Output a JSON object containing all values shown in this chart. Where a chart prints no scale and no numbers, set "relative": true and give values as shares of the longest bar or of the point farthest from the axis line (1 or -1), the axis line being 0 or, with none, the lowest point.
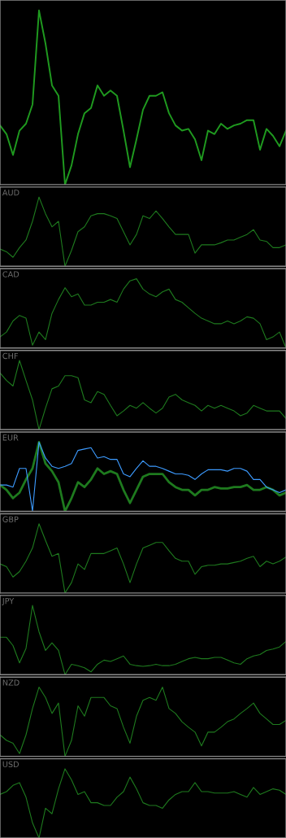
{
  "chart_data": [
    {
      "type": "line",
      "relative": true,
      "grid": false,
      "legend": false,
      "categories": [
        null,
        null,
        null,
        null,
        null,
        null,
        null,
        null,
        null,
        null,
        null,
        null,
        null,
        null,
        null,
        null,
        null,
        null,
        null,
        null,
        null,
        null,
        null,
        null,
        null,
        null,
        null,
        null,
        null,
        null,
        null,
        null,
        null,
        null,
        null,
        null,
        null,
        null,
        null,
        null,
        null,
        null,
        null,
        null,
        null
      ],
      "series": [
        {
          "color": "#1f9a1f",
          "values": [
            0.34,
            0.29,
            0.17,
            0.31,
            0.35,
            0.46,
            1.0,
            0.81,
            0.57,
            0.51,
            0.0,
            0.11,
            0.29,
            0.41,
            0.44,
            0.57,
            0.51,
            0.54,
            0.51,
            0.31,
            0.1,
            0.26,
            0.43,
            0.51,
            0.51,
            0.53,
            0.41,
            0.34,
            0.31,
            0.32,
            0.26,
            0.14,
            0.31,
            0.29,
            0.35,
            0.32,
            0.34,
            0.35,
            0.37,
            0.37,
            0.2,
            0.32,
            0.28,
            0.22,
            0.31
          ]
        }
      ]
    },
    {
      "type": "line",
      "relative": true,
      "grid": false,
      "legend": false,
      "title": "AUD",
      "categories": [
        null,
        null,
        null,
        null,
        null,
        null,
        null,
        null,
        null,
        null,
        null,
        null,
        null,
        null,
        null,
        null,
        null,
        null,
        null,
        null,
        null,
        null,
        null,
        null,
        null,
        null,
        null,
        null,
        null,
        null,
        null,
        null,
        null,
        null,
        null,
        null,
        null,
        null,
        null,
        null,
        null,
        null,
        null,
        null,
        null
      ],
      "series": [
        {
          "color": "#1e7a1e",
          "values": [
            0.25,
            0.21,
            0.13,
            0.27,
            0.38,
            0.65,
            1.0,
            0.76,
            0.57,
            0.65,
            0.0,
            0.23,
            0.5,
            0.57,
            0.73,
            0.76,
            0.76,
            0.73,
            0.69,
            0.5,
            0.31,
            0.46,
            0.73,
            0.69,
            0.8,
            0.69,
            0.57,
            0.46,
            0.46,
            0.46,
            0.19,
            0.31,
            0.31,
            0.31,
            0.34,
            0.38,
            0.38,
            0.42,
            0.46,
            0.53,
            0.38,
            0.36,
            0.27,
            0.27,
            0.31
          ]
        }
      ]
    },
    {
      "type": "line",
      "relative": true,
      "grid": false,
      "legend": false,
      "title": "CAD",
      "categories": [
        null,
        null,
        null,
        null,
        null,
        null,
        null,
        null,
        null,
        null,
        null,
        null,
        null,
        null,
        null,
        null,
        null,
        null,
        null,
        null,
        null,
        null,
        null,
        null,
        null,
        null,
        null,
        null,
        null,
        null,
        null,
        null,
        null,
        null,
        null,
        null,
        null,
        null,
        null,
        null,
        null,
        null,
        null,
        null,
        null
      ],
      "series": [
        {
          "color": "#1e7a1e",
          "values": [
            0.16,
            0.23,
            0.39,
            0.47,
            0.43,
            0.04,
            0.23,
            0.12,
            0.5,
            0.7,
            0.87,
            0.74,
            0.78,
            0.62,
            0.62,
            0.66,
            0.66,
            0.7,
            0.66,
            0.85,
            0.97,
            1.0,
            0.85,
            0.78,
            0.74,
            0.81,
            0.85,
            0.7,
            0.66,
            0.58,
            0.5,
            0.43,
            0.39,
            0.35,
            0.35,
            0.39,
            0.35,
            0.39,
            0.45,
            0.43,
            0.35,
            0.12,
            0.16,
            0.23,
            0.0
          ]
        }
      ]
    },
    {
      "type": "line",
      "relative": true,
      "grid": false,
      "legend": false,
      "title": "CHF",
      "categories": [
        null,
        null,
        null,
        null,
        null,
        null,
        null,
        null,
        null,
        null,
        null,
        null,
        null,
        null,
        null,
        null,
        null,
        null,
        null,
        null,
        null,
        null,
        null,
        null,
        null,
        null,
        null,
        null,
        null,
        null,
        null,
        null,
        null,
        null,
        null,
        null,
        null,
        null,
        null,
        null,
        null,
        null,
        null,
        null,
        null
      ],
      "series": [
        {
          "color": "#1e7a1e",
          "values": [
            0.82,
            0.71,
            0.63,
            1.0,
            0.71,
            0.43,
            0.0,
            0.31,
            0.59,
            0.63,
            0.78,
            0.78,
            0.75,
            0.43,
            0.39,
            0.55,
            0.51,
            0.35,
            0.2,
            0.27,
            0.35,
            0.31,
            0.39,
            0.31,
            0.24,
            0.31,
            0.47,
            0.51,
            0.43,
            0.39,
            0.35,
            0.27,
            0.35,
            0.31,
            0.35,
            0.31,
            0.27,
            0.2,
            0.24,
            0.35,
            0.31,
            0.27,
            0.27,
            0.27,
            0.16
          ]
        }
      ]
    },
    {
      "type": "line",
      "relative": true,
      "grid": false,
      "legend": false,
      "title": "EUR",
      "categories": [
        null,
        null,
        null,
        null,
        null,
        null,
        null,
        null,
        null,
        null,
        null,
        null,
        null,
        null,
        null,
        null,
        null,
        null,
        null,
        null,
        null,
        null,
        null,
        null,
        null,
        null,
        null,
        null,
        null,
        null,
        null,
        null,
        null,
        null,
        null,
        null,
        null,
        null,
        null,
        null,
        null,
        null,
        null,
        null,
        null
      ],
      "series": [
        {
          "color": "#1e7a1e",
          "values": [
            0.38,
            0.31,
            0.19,
            0.27,
            0.46,
            0.62,
            1.0,
            0.69,
            0.58,
            0.42,
            0.0,
            0.19,
            0.42,
            0.35,
            0.46,
            0.62,
            0.54,
            0.58,
            0.54,
            0.31,
            0.12,
            0.31,
            0.5,
            0.54,
            0.54,
            0.54,
            0.42,
            0.35,
            0.31,
            0.31,
            0.23,
            0.31,
            0.31,
            0.35,
            0.33,
            0.33,
            0.35,
            0.35,
            0.38,
            0.31,
            0.31,
            0.35,
            0.31,
            0.23,
            0.27
          ]
        },
        {
          "color": "#3d9bff",
          "values": [
            0.38,
            0.38,
            0.35,
            0.62,
            0.62,
            0.0,
            1.0,
            0.77,
            0.65,
            0.62,
            0.65,
            0.69,
            0.88,
            0.9,
            0.92,
            0.77,
            0.79,
            0.75,
            0.75,
            0.54,
            0.5,
            0.62,
            0.73,
            0.65,
            0.65,
            0.62,
            0.58,
            0.54,
            0.54,
            0.52,
            0.46,
            0.54,
            0.6,
            0.6,
            0.6,
            0.58,
            0.62,
            0.62,
            0.58,
            0.46,
            0.46,
            0.35,
            0.31,
            0.27,
            0.31
          ]
        }
      ]
    },
    {
      "type": "line",
      "relative": true,
      "grid": false,
      "legend": false,
      "title": "GBP",
      "categories": [
        null,
        null,
        null,
        null,
        null,
        null,
        null,
        null,
        null,
        null,
        null,
        null,
        null,
        null,
        null,
        null,
        null,
        null,
        null,
        null,
        null,
        null,
        null,
        null,
        null,
        null,
        null,
        null,
        null,
        null,
        null,
        null,
        null,
        null,
        null,
        null,
        null,
        null,
        null,
        null,
        null,
        null,
        null,
        null,
        null
      ],
      "series": [
        {
          "color": "#1e7a1e",
          "values": [
            0.42,
            0.38,
            0.23,
            0.31,
            0.46,
            0.65,
            1.0,
            0.76,
            0.53,
            0.57,
            0.0,
            0.15,
            0.42,
            0.34,
            0.57,
            0.57,
            0.57,
            0.61,
            0.65,
            0.42,
            0.15,
            0.42,
            0.65,
            0.69,
            0.73,
            0.73,
            0.61,
            0.5,
            0.46,
            0.46,
            0.27,
            0.38,
            0.4,
            0.4,
            0.42,
            0.42,
            0.44,
            0.46,
            0.5,
            0.53,
            0.38,
            0.46,
            0.42,
            0.46,
            0.52
          ]
        }
      ]
    },
    {
      "type": "line",
      "relative": true,
      "grid": false,
      "legend": false,
      "title": "JPY",
      "categories": [
        null,
        null,
        null,
        null,
        null,
        null,
        null,
        null,
        null,
        null,
        null,
        null,
        null,
        null,
        null,
        null,
        null,
        null,
        null,
        null,
        null,
        null,
        null,
        null,
        null,
        null,
        null,
        null,
        null,
        null,
        null,
        null,
        null,
        null,
        null,
        null,
        null,
        null,
        null,
        null,
        null,
        null,
        null,
        null,
        null
      ],
      "series": [
        {
          "color": "#1e7a1e",
          "values": [
            0.54,
            0.54,
            0.42,
            0.17,
            0.38,
            1.0,
            0.62,
            0.35,
            0.46,
            0.35,
            0.0,
            0.15,
            0.13,
            0.1,
            0.04,
            0.15,
            0.21,
            0.19,
            0.23,
            0.27,
            0.15,
            0.13,
            0.12,
            0.13,
            0.15,
            0.13,
            0.13,
            0.15,
            0.19,
            0.23,
            0.25,
            0.23,
            0.23,
            0.25,
            0.25,
            0.21,
            0.17,
            0.15,
            0.23,
            0.27,
            0.29,
            0.35,
            0.37,
            0.4,
            0.48
          ]
        }
      ]
    },
    {
      "type": "line",
      "relative": true,
      "grid": false,
      "legend": false,
      "title": "NZD",
      "categories": [
        null,
        null,
        null,
        null,
        null,
        null,
        null,
        null,
        null,
        null,
        null,
        null,
        null,
        null,
        null,
        null,
        null,
        null,
        null,
        null,
        null,
        null,
        null,
        null,
        null,
        null,
        null,
        null,
        null,
        null,
        null,
        null,
        null,
        null,
        null,
        null,
        null,
        null,
        null,
        null,
        null,
        null,
        null,
        null,
        null
      ],
      "series": [
        {
          "color": "#1e7a1e",
          "values": [
            0.31,
            0.23,
            0.19,
            0.04,
            0.31,
            0.69,
            1.0,
            0.85,
            0.62,
            0.77,
            0.0,
            0.23,
            0.73,
            0.58,
            0.85,
            0.85,
            0.85,
            0.73,
            0.69,
            0.42,
            0.19,
            0.58,
            0.81,
            0.85,
            0.81,
            1.0,
            0.69,
            0.62,
            0.5,
            0.42,
            0.35,
            0.15,
            0.35,
            0.35,
            0.42,
            0.5,
            0.54,
            0.62,
            0.69,
            0.77,
            0.62,
            0.54,
            0.46,
            0.46,
            0.52
          ]
        }
      ]
    },
    {
      "type": "line",
      "relative": true,
      "grid": false,
      "legend": false,
      "title": "USD",
      "categories": [
        null,
        null,
        null,
        null,
        null,
        null,
        null,
        null,
        null,
        null,
        null,
        null,
        null,
        null,
        null,
        null,
        null,
        null,
        null,
        null,
        null,
        null,
        null,
        null,
        null,
        null,
        null,
        null,
        null,
        null,
        null,
        null,
        null,
        null,
        null,
        null,
        null,
        null,
        null,
        null,
        null,
        null,
        null,
        null,
        null
      ],
      "series": [
        {
          "color": "#1e7a1e",
          "values": [
            0.63,
            0.67,
            0.76,
            0.8,
            0.59,
            0.22,
            0.0,
            0.43,
            0.35,
            0.71,
            1.0,
            0.84,
            0.63,
            0.67,
            0.51,
            0.51,
            0.47,
            0.47,
            0.59,
            0.67,
            0.88,
            0.71,
            0.51,
            0.47,
            0.47,
            0.43,
            0.55,
            0.63,
            0.67,
            0.67,
            0.8,
            0.67,
            0.67,
            0.65,
            0.65,
            0.65,
            0.67,
            0.63,
            0.59,
            0.73,
            0.63,
            0.67,
            0.71,
            0.69,
            0.63
          ]
        }
      ]
    }
  ]
}
